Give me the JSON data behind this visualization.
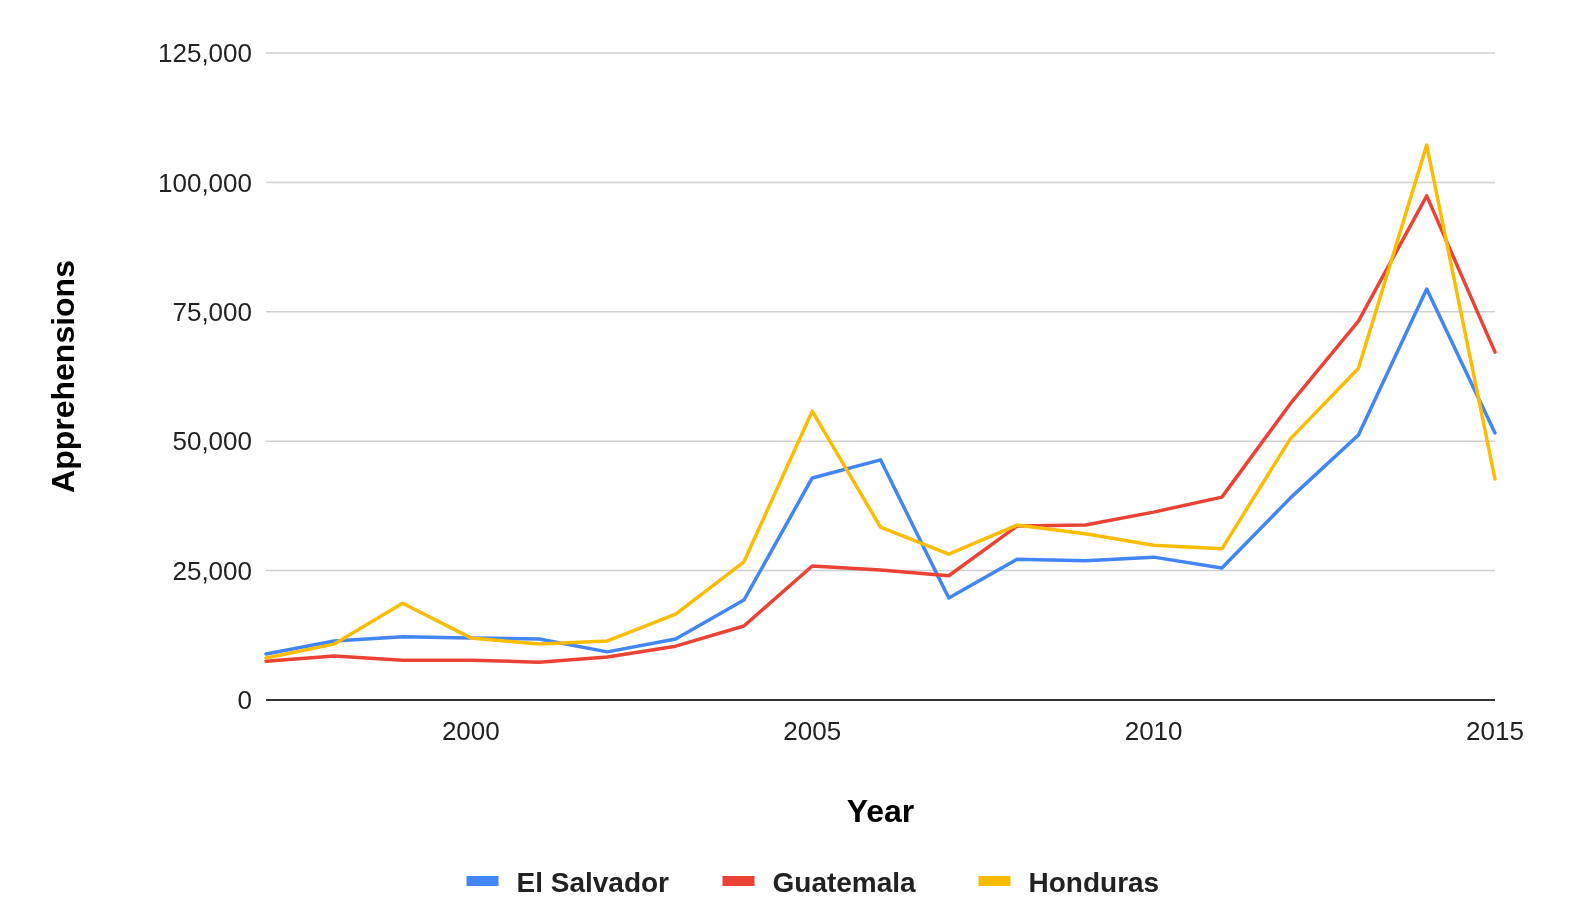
{
  "chart_data": {
    "type": "line",
    "xlabel": "Year",
    "ylabel": "Apprehensions",
    "x": [
      1997,
      1998,
      1999,
      2000,
      2001,
      2002,
      2003,
      2004,
      2005,
      2006,
      2007,
      2008,
      2009,
      2010,
      2011,
      2012,
      2013,
      2014,
      2015
    ],
    "xlim": [
      1997,
      2015
    ],
    "xticks": [
      2000,
      2005,
      2010,
      2015
    ],
    "ylim": [
      0,
      125000
    ],
    "yticks": [
      {
        "value": 0,
        "label": "0"
      },
      {
        "value": 25000,
        "label": "25,000"
      },
      {
        "value": 50000,
        "label": "50,000"
      },
      {
        "value": 75000,
        "label": "75,000"
      },
      {
        "value": 100000,
        "label": "100,000"
      },
      {
        "value": 125000,
        "label": "125,000"
      }
    ],
    "grid": "y",
    "legend": "bottom",
    "marker": "none",
    "line_style": "solid",
    "series": [
      {
        "name": "El Salvador",
        "color": "#4285f4",
        "values": [
          8900,
          11400,
          12200,
          12000,
          11800,
          9300,
          11800,
          19300,
          42900,
          46400,
          19700,
          27200,
          26900,
          27600,
          25500,
          39000,
          51200,
          79400,
          51600
        ]
      },
      {
        "name": "Guatemala",
        "color": "#ea4335",
        "values": [
          7500,
          8500,
          7700,
          7700,
          7300,
          8300,
          10400,
          14300,
          25900,
          25100,
          24000,
          33600,
          33800,
          36300,
          39200,
          57200,
          73200,
          97400,
          67200
        ]
      },
      {
        "name": "Honduras",
        "color": "#fbbc04",
        "values": [
          8100,
          10800,
          18700,
          12000,
          10800,
          11400,
          16600,
          26700,
          55800,
          33400,
          28200,
          33800,
          32100,
          29900,
          29200,
          50400,
          64100,
          107200,
          42700
        ]
      }
    ]
  }
}
